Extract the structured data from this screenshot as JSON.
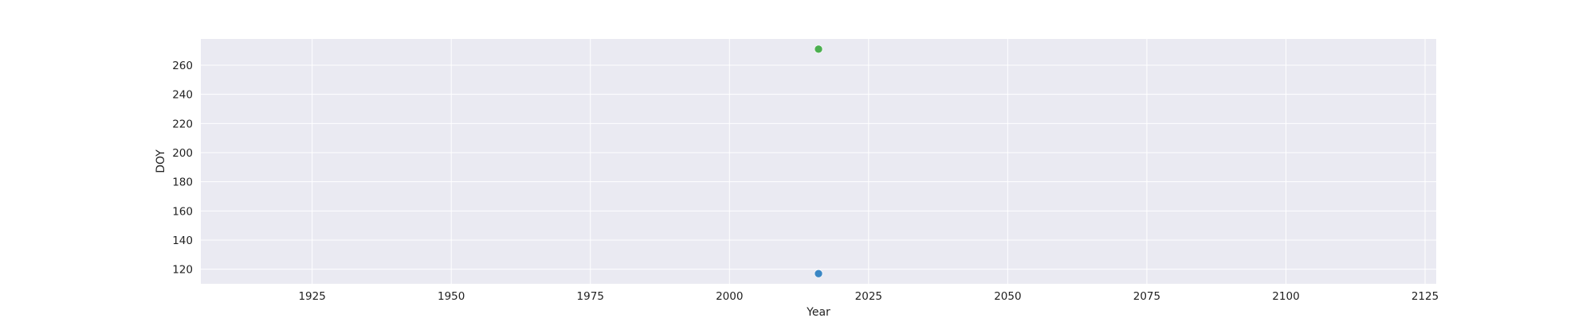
{
  "chart_data": {
    "type": "scatter",
    "title": "",
    "xlabel": "Year",
    "ylabel": "DOY",
    "xlim": [
      1905,
      2127
    ],
    "ylim": [
      110,
      278
    ],
    "xticks": [
      1925,
      1950,
      1975,
      2000,
      2025,
      2050,
      2075,
      2100,
      2125
    ],
    "yticks": [
      120,
      140,
      160,
      180,
      200,
      220,
      240,
      260
    ],
    "grid": true,
    "legend": "none",
    "colors": {
      "plot_background": "#EAEAF2",
      "grid": "#FFFFFF"
    },
    "series": [
      {
        "color": "#3A86C4",
        "points": [
          {
            "x": 2016,
            "y": 117
          }
        ]
      },
      {
        "color": "#4CAF50",
        "points": [
          {
            "x": 2016,
            "y": 271
          }
        ]
      }
    ]
  }
}
